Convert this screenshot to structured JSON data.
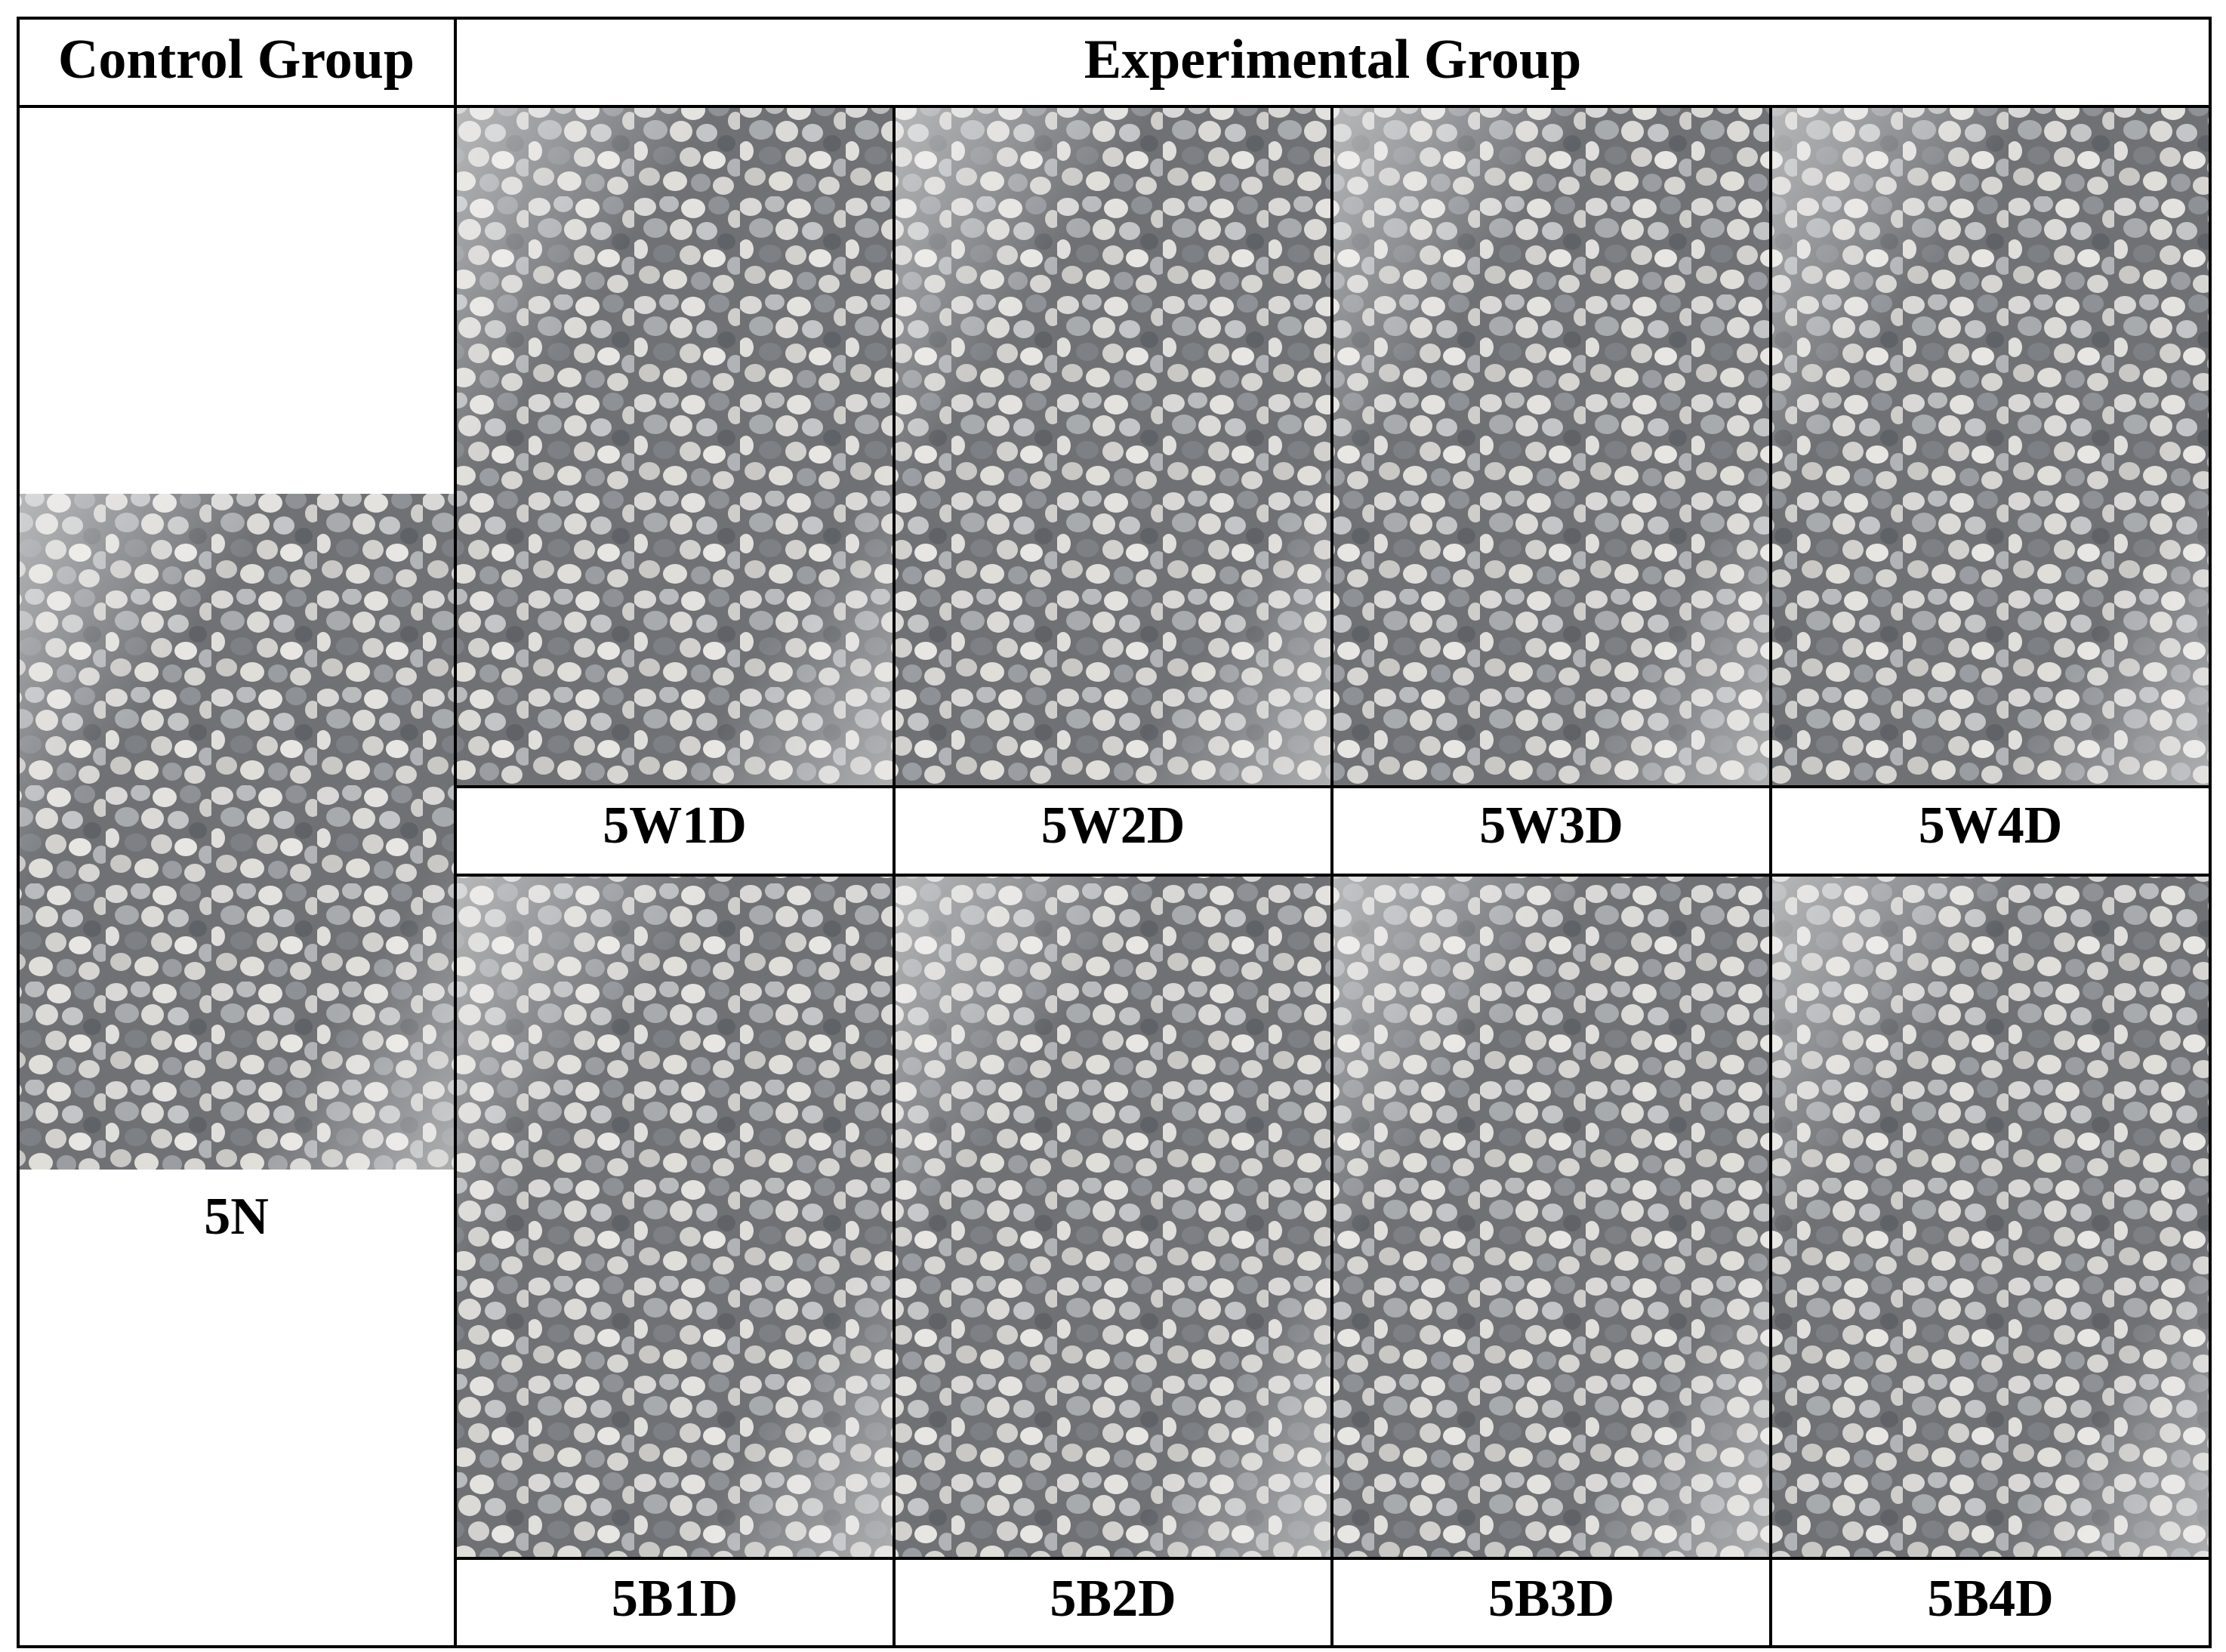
{
  "header": {
    "control": "Control Group",
    "experimental": "Experimental Group"
  },
  "control": {
    "label": "5N"
  },
  "experimental": {
    "rows": [
      [
        "5W1D",
        "5W2D",
        "5W3D",
        "5W4D"
      ],
      [
        "5B1D",
        "5B2D",
        "5B3D",
        "5B4D"
      ]
    ]
  }
}
